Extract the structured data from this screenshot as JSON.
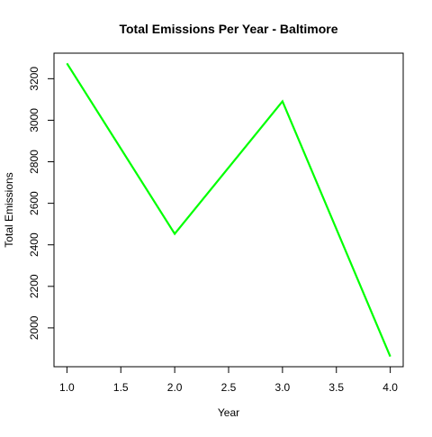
{
  "chart_data": {
    "type": "line",
    "title": "Total Emissions Per Year - Baltimore",
    "xlabel": "Year",
    "ylabel": "Total Emissions",
    "x": [
      1,
      2,
      3,
      4
    ],
    "series": [
      {
        "name": "Baltimore",
        "values": [
          3274,
          2453,
          3091,
          1862
        ],
        "color": "#00ff00"
      }
    ],
    "xlim": [
      0.88,
      4.12
    ],
    "ylim": [
      1813,
      3323
    ],
    "xticks": [
      1.0,
      1.5,
      2.0,
      2.5,
      3.0,
      3.5,
      4.0
    ],
    "xtick_labels": [
      "1.0",
      "1.5",
      "2.0",
      "2.5",
      "3.0",
      "3.5",
      "4.0"
    ],
    "yticks": [
      2000,
      2200,
      2400,
      2600,
      2800,
      3000,
      3200
    ],
    "ytick_labels": [
      "2000",
      "2200",
      "2400",
      "2600",
      "2800",
      "3000",
      "3200"
    ],
    "grid": false,
    "legend": "none"
  }
}
